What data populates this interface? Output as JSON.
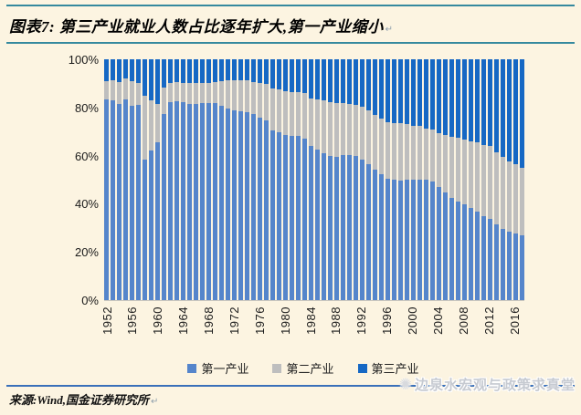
{
  "page": {
    "background": "#FCF4E1"
  },
  "header": {
    "title": "图表7: 第三产业就业人数占比逐年扩大,第一产业缩小",
    "return_mark": "↵",
    "rule_color": "#35899E"
  },
  "chart_data": {
    "type": "bar",
    "stacked": true,
    "percent_stacked": true,
    "title": "第三产业就业人数占比逐年扩大,第一产业缩小",
    "xlabel": "",
    "ylabel": "",
    "ylim": [
      0,
      100
    ],
    "grid": false,
    "legend_position": "bottom",
    "x": [
      1952,
      1953,
      1954,
      1955,
      1956,
      1957,
      1958,
      1959,
      1960,
      1961,
      1962,
      1963,
      1964,
      1965,
      1966,
      1967,
      1968,
      1969,
      1970,
      1971,
      1972,
      1973,
      1974,
      1975,
      1976,
      1977,
      1978,
      1979,
      1980,
      1981,
      1982,
      1983,
      1984,
      1985,
      1986,
      1987,
      1988,
      1989,
      1990,
      1991,
      1992,
      1993,
      1994,
      1995,
      1996,
      1997,
      1998,
      1999,
      2000,
      2001,
      2002,
      2003,
      2004,
      2005,
      2006,
      2007,
      2008,
      2009,
      2010,
      2011,
      2012,
      2013,
      2014,
      2015,
      2016,
      2017
    ],
    "x_tick_labels": [
      "1952",
      "1956",
      "1960",
      "1964",
      "1968",
      "1972",
      "1976",
      "1980",
      "1984",
      "1988",
      "1992",
      "1996",
      "2000",
      "2004",
      "2008",
      "2012",
      "2016"
    ],
    "y_ticks": [
      "100%",
      "80%",
      "60%",
      "40%",
      "20%",
      "0%"
    ],
    "series": [
      {
        "name": "第一产业",
        "color": "#5585CB",
        "values": [
          83.5,
          83.1,
          81.5,
          83.3,
          80.6,
          81.2,
          58.2,
          62.2,
          65.7,
          77.2,
          82.1,
          82.5,
          82.2,
          81.6,
          81.6,
          81.7,
          81.8,
          81.7,
          80.8,
          79.7,
          78.9,
          78.5,
          78.1,
          77.2,
          75.8,
          74.7,
          70.5,
          69.8,
          68.7,
          68.1,
          68.1,
          67.1,
          64.0,
          62.4,
          60.9,
          60.0,
          59.3,
          60.1,
          60.1,
          59.7,
          58.5,
          56.4,
          54.3,
          52.2,
          50.5,
          49.9,
          49.8,
          50.1,
          50.0,
          50.0,
          50.0,
          49.1,
          46.9,
          44.8,
          42.6,
          40.8,
          39.6,
          38.1,
          36.7,
          34.8,
          33.6,
          31.4,
          29.5,
          28.3,
          27.7,
          27.0
        ]
      },
      {
        "name": "第二产业",
        "color": "#BEBEBE",
        "values": [
          7.4,
          8.0,
          9.0,
          8.6,
          10.3,
          9.0,
          26.6,
          20.6,
          15.9,
          11.2,
          8.0,
          7.9,
          8.0,
          8.4,
          8.5,
          8.5,
          8.5,
          8.7,
          10.2,
          11.5,
          12.3,
          12.6,
          13.0,
          13.5,
          14.5,
          15.0,
          17.3,
          17.6,
          18.2,
          18.3,
          18.4,
          18.7,
          19.9,
          20.8,
          21.9,
          22.2,
          22.4,
          21.6,
          21.4,
          21.4,
          21.7,
          22.4,
          22.7,
          23.0,
          23.5,
          23.7,
          23.5,
          23.0,
          22.5,
          22.3,
          21.4,
          21.6,
          22.5,
          23.8,
          25.2,
          26.8,
          27.2,
          27.8,
          28.7,
          29.5,
          30.3,
          30.1,
          29.9,
          29.3,
          28.8,
          28.1
        ]
      },
      {
        "name": "第三产业",
        "color": "#1668C4",
        "values": [
          9.1,
          8.9,
          9.5,
          8.1,
          9.1,
          9.8,
          15.2,
          17.2,
          18.4,
          11.6,
          9.9,
          9.6,
          9.8,
          10.0,
          9.9,
          9.8,
          9.7,
          9.6,
          9.0,
          8.8,
          8.8,
          8.9,
          8.9,
          9.3,
          9.7,
          10.3,
          12.2,
          12.6,
          13.1,
          13.6,
          13.5,
          14.2,
          16.1,
          16.8,
          17.2,
          17.8,
          18.3,
          18.3,
          18.5,
          18.9,
          19.8,
          21.2,
          23.0,
          24.8,
          26.0,
          26.4,
          26.7,
          26.9,
          27.5,
          27.7,
          28.6,
          29.3,
          30.6,
          31.4,
          32.2,
          32.4,
          33.2,
          34.1,
          34.6,
          35.7,
          36.1,
          38.5,
          40.6,
          42.4,
          43.5,
          44.9
        ]
      }
    ]
  },
  "footer": {
    "source": "来源:Wind,国金证券研究所",
    "return_mark": "↵",
    "rule_color": "#3A70B9",
    "watermark": {
      "icon": "sun-logo",
      "text": "边泉水宏观与政策求真堂"
    }
  }
}
